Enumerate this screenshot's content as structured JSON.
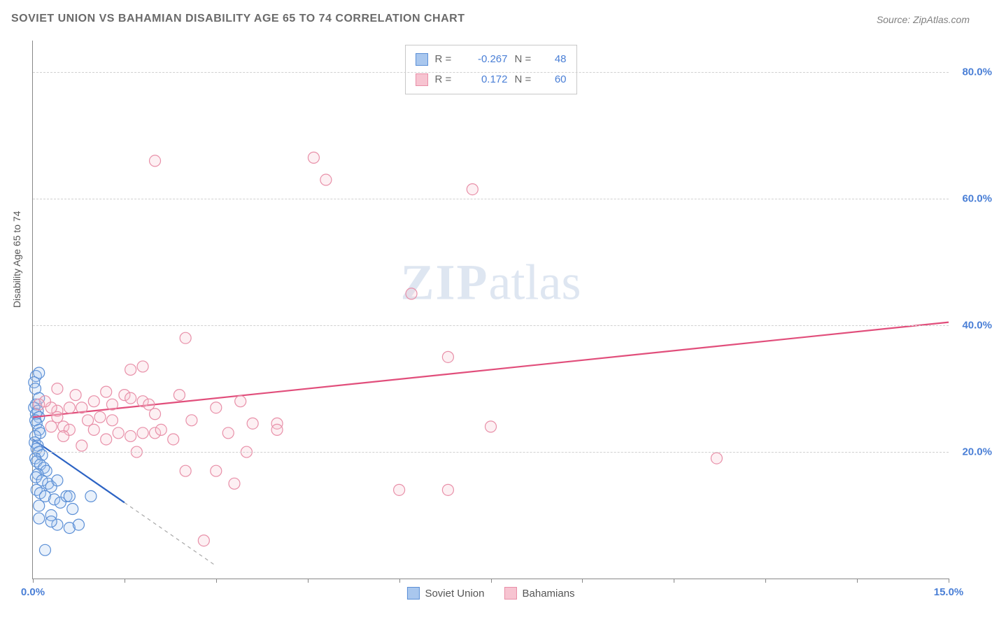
{
  "chart": {
    "type": "scatter",
    "title": "SOVIET UNION VS BAHAMIAN DISABILITY AGE 65 TO 74 CORRELATION CHART",
    "source_label": "Source: ZipAtlas.com",
    "y_axis_title": "Disability Age 65 to 74",
    "watermark_zip": "ZIP",
    "watermark_atlas": "atlas",
    "background_color": "#ffffff",
    "grid_color": "#d0d0d0",
    "axis_color": "#888888",
    "tick_label_color": "#4a7fd6",
    "title_color": "#6b6b6b",
    "title_fontsize": 16,
    "tick_fontsize": 15,
    "yaxis_title_fontsize": 14,
    "xlim": [
      0.0,
      15.0
    ],
    "ylim": [
      0.0,
      85.0
    ],
    "x_ticks": [
      0.0,
      1.5,
      3.0,
      4.5,
      6.0,
      7.5,
      9.0,
      10.5,
      12.0,
      13.5,
      15.0
    ],
    "x_tick_labels": {
      "0": "0.0%",
      "15": "15.0%"
    },
    "y_ticks": [
      20.0,
      40.0,
      60.0,
      80.0
    ],
    "y_tick_labels": [
      "20.0%",
      "40.0%",
      "60.0%",
      "80.0%"
    ],
    "marker_radius": 8,
    "marker_stroke_width": 1.2,
    "marker_fill_opacity": 0.25,
    "trend_line_width": 2.2,
    "trend_dash_width": 1.2,
    "series": [
      {
        "name": "Soviet Union",
        "color_stroke": "#5b8fd6",
        "color_fill": "#a9c7ee",
        "trend_solid_color": "#2c63c4",
        "trend_dash_color": "#a8a8a8",
        "R": "-0.267",
        "N": "48",
        "trend_solid": {
          "x1": 0.0,
          "y1": 22.0,
          "x2": 1.5,
          "y2": 12.0
        },
        "trend_dash": {
          "x1": 1.5,
          "y1": 12.0,
          "x2": 3.0,
          "y2": 2.0
        },
        "points": [
          [
            0.05,
            32.0
          ],
          [
            0.1,
            32.5
          ],
          [
            0.05,
            27.5
          ],
          [
            0.02,
            27.0
          ],
          [
            0.08,
            26.5
          ],
          [
            0.05,
            26.0
          ],
          [
            0.1,
            25.5
          ],
          [
            0.04,
            25.0
          ],
          [
            0.06,
            24.5
          ],
          [
            0.1,
            23.5
          ],
          [
            0.12,
            23.0
          ],
          [
            0.04,
            22.5
          ],
          [
            0.03,
            21.5
          ],
          [
            0.08,
            21.0
          ],
          [
            0.06,
            20.5
          ],
          [
            0.1,
            20.0
          ],
          [
            0.15,
            19.5
          ],
          [
            0.04,
            19.0
          ],
          [
            0.06,
            18.5
          ],
          [
            0.12,
            18.0
          ],
          [
            0.18,
            17.5
          ],
          [
            0.22,
            17.0
          ],
          [
            0.08,
            16.5
          ],
          [
            0.05,
            16.0
          ],
          [
            0.15,
            15.5
          ],
          [
            0.25,
            15.0
          ],
          [
            0.3,
            14.5
          ],
          [
            0.06,
            14.0
          ],
          [
            0.12,
            13.5
          ],
          [
            0.2,
            13.0
          ],
          [
            0.35,
            12.5
          ],
          [
            0.45,
            12.0
          ],
          [
            0.1,
            11.5
          ],
          [
            0.55,
            13.0
          ],
          [
            0.6,
            13.0
          ],
          [
            0.65,
            11.0
          ],
          [
            0.4,
            15.5
          ],
          [
            0.3,
            10.0
          ],
          [
            0.4,
            8.5
          ],
          [
            0.3,
            9.0
          ],
          [
            0.1,
            9.5
          ],
          [
            0.2,
            4.5
          ],
          [
            0.6,
            8.0
          ],
          [
            0.75,
            8.5
          ],
          [
            0.02,
            31.0
          ],
          [
            0.04,
            30.0
          ],
          [
            0.95,
            13.0
          ],
          [
            0.1,
            28.5
          ]
        ]
      },
      {
        "name": "Bahamians",
        "color_stroke": "#e88fa8",
        "color_fill": "#f7c4d1",
        "trend_solid_color": "#e14e7b",
        "trend_dash_color": "#e88fa8",
        "R": "0.172",
        "N": "60",
        "trend_solid": {
          "x1": 0.0,
          "y1": 25.5,
          "x2": 15.0,
          "y2": 40.5
        },
        "trend_dash": null,
        "points": [
          [
            2.0,
            66.0
          ],
          [
            4.6,
            66.5
          ],
          [
            4.8,
            63.0
          ],
          [
            7.2,
            61.5
          ],
          [
            6.2,
            45.0
          ],
          [
            6.8,
            35.0
          ],
          [
            11.2,
            19.0
          ],
          [
            6.0,
            14.0
          ],
          [
            6.8,
            14.0
          ],
          [
            3.0,
            17.0
          ],
          [
            2.8,
            6.0
          ],
          [
            2.5,
            38.0
          ],
          [
            1.8,
            33.5
          ],
          [
            0.6,
            27.0
          ],
          [
            1.6,
            33.0
          ],
          [
            1.5,
            29.0
          ],
          [
            1.6,
            28.5
          ],
          [
            1.8,
            28.0
          ],
          [
            1.0,
            28.0
          ],
          [
            1.3,
            27.5
          ],
          [
            0.8,
            27.0
          ],
          [
            1.1,
            25.5
          ],
          [
            0.9,
            25.0
          ],
          [
            1.0,
            23.5
          ],
          [
            1.4,
            23.0
          ],
          [
            1.8,
            23.0
          ],
          [
            2.0,
            23.0
          ],
          [
            2.1,
            23.5
          ],
          [
            1.6,
            22.5
          ],
          [
            2.3,
            22.0
          ],
          [
            2.5,
            17.0
          ],
          [
            2.0,
            26.0
          ],
          [
            0.5,
            24.0
          ],
          [
            0.7,
            29.0
          ],
          [
            0.4,
            26.5
          ],
          [
            0.3,
            27.0
          ],
          [
            0.6,
            23.5
          ],
          [
            3.5,
            20.0
          ],
          [
            3.6,
            24.5
          ],
          [
            4.0,
            24.5
          ],
          [
            4.0,
            23.5
          ],
          [
            3.2,
            23.0
          ],
          [
            3.3,
            15.0
          ],
          [
            3.4,
            28.0
          ],
          [
            3.0,
            27.0
          ],
          [
            2.6,
            25.0
          ],
          [
            1.2,
            22.0
          ],
          [
            0.8,
            21.0
          ],
          [
            0.5,
            22.5
          ],
          [
            0.4,
            25.5
          ],
          [
            0.2,
            28.0
          ],
          [
            0.3,
            24.0
          ],
          [
            1.7,
            20.0
          ],
          [
            0.4,
            30.0
          ],
          [
            0.1,
            27.5
          ],
          [
            7.5,
            24.0
          ],
          [
            1.9,
            27.5
          ],
          [
            1.2,
            29.5
          ],
          [
            2.4,
            29.0
          ],
          [
            1.3,
            25.0
          ]
        ]
      }
    ],
    "legend_top": {
      "r_label": "R =",
      "n_label": "N ="
    },
    "legend_bottom": {
      "series1_label": "Soviet Union",
      "series2_label": "Bahamians"
    }
  }
}
